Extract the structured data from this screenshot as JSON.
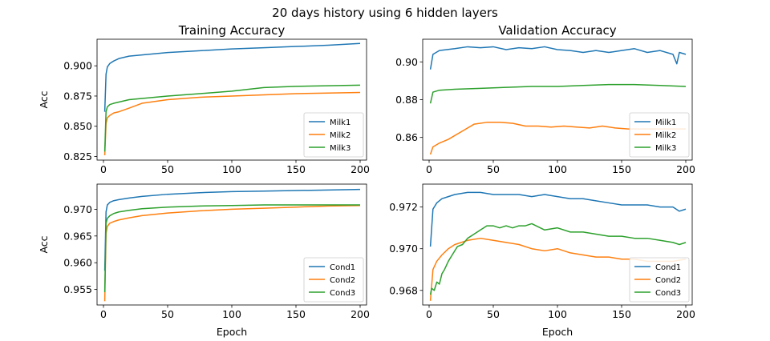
{
  "figure": {
    "suptitle": "20 days history using 6 hidden layers"
  },
  "chart_data": [
    {
      "type": "line",
      "title": "Training Accuracy",
      "xlabel": "",
      "ylabel": "Acc",
      "xlim": [
        -5,
        205
      ],
      "ylim": [
        0.822,
        0.922
      ],
      "xticks": [
        0,
        50,
        100,
        150,
        200
      ],
      "xtick_labels": [
        "0",
        "50",
        "100",
        "150",
        "200"
      ],
      "yticks": [
        0.825,
        0.85,
        0.875,
        0.9
      ],
      "ytick_labels": [
        "0.825",
        "0.850",
        "0.875",
        "0.900"
      ],
      "legend": "lower-right",
      "series": [
        {
          "name": "Milk1",
          "color": "#1f77b4",
          "x": [
            1,
            2,
            3,
            5,
            8,
            12,
            20,
            30,
            50,
            75,
            100,
            125,
            150,
            175,
            200
          ],
          "values": [
            0.862,
            0.893,
            0.899,
            0.902,
            0.904,
            0.906,
            0.908,
            0.909,
            0.911,
            0.9125,
            0.914,
            0.915,
            0.916,
            0.917,
            0.9185
          ]
        },
        {
          "name": "Milk2",
          "color": "#ff7f0e",
          "x": [
            1,
            2,
            3,
            5,
            8,
            12,
            20,
            30,
            50,
            75,
            100,
            125,
            150,
            175,
            200
          ],
          "values": [
            0.826,
            0.852,
            0.857,
            0.859,
            0.861,
            0.862,
            0.865,
            0.869,
            0.872,
            0.874,
            0.875,
            0.876,
            0.877,
            0.8775,
            0.878
          ]
        },
        {
          "name": "Milk3",
          "color": "#2ca02c",
          "x": [
            1,
            2,
            3,
            5,
            8,
            12,
            20,
            30,
            50,
            75,
            100,
            125,
            150,
            175,
            200
          ],
          "values": [
            0.829,
            0.862,
            0.866,
            0.868,
            0.869,
            0.87,
            0.872,
            0.873,
            0.875,
            0.877,
            0.879,
            0.882,
            0.883,
            0.8835,
            0.884
          ]
        }
      ]
    },
    {
      "type": "line",
      "title": "Validation Accuracy",
      "xlabel": "",
      "ylabel": "",
      "xlim": [
        -5,
        205
      ],
      "ylim": [
        0.848,
        0.912
      ],
      "xticks": [
        0,
        50,
        100,
        150,
        200
      ],
      "xtick_labels": [
        "0",
        "50",
        "100",
        "150",
        "200"
      ],
      "yticks": [
        0.86,
        0.88,
        0.9
      ],
      "ytick_labels": [
        "0.86",
        "0.88",
        "0.90"
      ],
      "legend": "lower-right",
      "series": [
        {
          "name": "Milk1",
          "color": "#1f77b4",
          "x": [
            1,
            3,
            8,
            20,
            30,
            40,
            50,
            60,
            70,
            80,
            90,
            100,
            110,
            120,
            130,
            140,
            150,
            160,
            170,
            180,
            190,
            193,
            195,
            200
          ],
          "values": [
            0.896,
            0.904,
            0.906,
            0.907,
            0.908,
            0.9075,
            0.908,
            0.9065,
            0.9075,
            0.907,
            0.908,
            0.9065,
            0.906,
            0.905,
            0.906,
            0.905,
            0.906,
            0.907,
            0.905,
            0.906,
            0.904,
            0.899,
            0.905,
            0.904
          ]
        },
        {
          "name": "Milk2",
          "color": "#ff7f0e",
          "x": [
            1,
            3,
            8,
            15,
            25,
            35,
            45,
            55,
            65,
            75,
            85,
            95,
            105,
            115,
            125,
            135,
            145,
            155,
            165,
            175,
            185,
            195,
            200
          ],
          "values": [
            0.851,
            0.855,
            0.857,
            0.859,
            0.863,
            0.867,
            0.868,
            0.868,
            0.8675,
            0.866,
            0.866,
            0.8655,
            0.866,
            0.8655,
            0.865,
            0.866,
            0.865,
            0.8645,
            0.8645,
            0.8645,
            0.8645,
            0.8645,
            0.8645
          ]
        },
        {
          "name": "Milk3",
          "color": "#2ca02c",
          "x": [
            1,
            3,
            8,
            20,
            40,
            60,
            80,
            100,
            120,
            140,
            160,
            180,
            200
          ],
          "values": [
            0.878,
            0.884,
            0.885,
            0.8855,
            0.886,
            0.8865,
            0.887,
            0.887,
            0.8875,
            0.888,
            0.888,
            0.8875,
            0.887
          ]
        }
      ]
    },
    {
      "type": "line",
      "title": "",
      "xlabel": "Epoch",
      "ylabel": "Acc",
      "xlim": [
        -5,
        205
      ],
      "ylim": [
        0.9521,
        0.9747
      ],
      "xticks": [
        0,
        50,
        100,
        150,
        200
      ],
      "xtick_labels": [
        "0",
        "50",
        "100",
        "150",
        "200"
      ],
      "yticks": [
        0.955,
        0.96,
        0.965,
        0.97
      ],
      "ytick_labels": [
        "0.955",
        "0.960",
        "0.965",
        "0.970"
      ],
      "legend": "lower-right",
      "series": [
        {
          "name": "Cond1",
          "color": "#1f77b4",
          "x": [
            1,
            2,
            3,
            5,
            8,
            12,
            20,
            30,
            50,
            75,
            100,
            125,
            150,
            175,
            200
          ],
          "values": [
            0.9585,
            0.9695,
            0.9708,
            0.9713,
            0.9716,
            0.9718,
            0.9721,
            0.9724,
            0.9728,
            0.9731,
            0.9733,
            0.9734,
            0.9735,
            0.9736,
            0.9737
          ]
        },
        {
          "name": "Cond2",
          "color": "#ff7f0e",
          "x": [
            1,
            2,
            3,
            5,
            8,
            12,
            20,
            30,
            50,
            75,
            100,
            125,
            150,
            175,
            200
          ],
          "values": [
            0.9528,
            0.9655,
            0.9668,
            0.9674,
            0.9677,
            0.968,
            0.9684,
            0.9688,
            0.9693,
            0.9697,
            0.97,
            0.9702,
            0.9704,
            0.9706,
            0.9707
          ]
        },
        {
          "name": "Cond3",
          "color": "#2ca02c",
          "x": [
            1,
            2,
            3,
            5,
            8,
            12,
            20,
            30,
            50,
            75,
            100,
            125,
            150,
            175,
            200
          ],
          "values": [
            0.9545,
            0.9674,
            0.9683,
            0.9688,
            0.9692,
            0.9695,
            0.9698,
            0.9701,
            0.9704,
            0.9706,
            0.9707,
            0.9708,
            0.9708,
            0.9708,
            0.9708
          ]
        }
      ]
    },
    {
      "type": "line",
      "title": "",
      "xlabel": "Epoch",
      "ylabel": "",
      "xlim": [
        -5,
        205
      ],
      "ylim": [
        0.9673,
        0.9731
      ],
      "xticks": [
        0,
        50,
        100,
        150,
        200
      ],
      "xtick_labels": [
        "0",
        "50",
        "100",
        "150",
        "200"
      ],
      "yticks": [
        0.968,
        0.97,
        0.972
      ],
      "ytick_labels": [
        "0.968",
        "0.970",
        "0.972"
      ],
      "legend": "lower-right",
      "series": [
        {
          "name": "Cond1",
          "color": "#1f77b4",
          "x": [
            1,
            3,
            6,
            10,
            15,
            20,
            30,
            40,
            50,
            60,
            70,
            80,
            90,
            100,
            110,
            120,
            130,
            140,
            150,
            160,
            170,
            180,
            190,
            195,
            200
          ],
          "values": [
            0.9701,
            0.9719,
            0.9722,
            0.9724,
            0.9725,
            0.9726,
            0.9727,
            0.9727,
            0.9726,
            0.9726,
            0.9726,
            0.9725,
            0.9726,
            0.9725,
            0.9724,
            0.9724,
            0.9723,
            0.9722,
            0.9721,
            0.9721,
            0.9721,
            0.972,
            0.972,
            0.9718,
            0.9719
          ]
        },
        {
          "name": "Cond2",
          "color": "#ff7f0e",
          "x": [
            1,
            3,
            6,
            10,
            15,
            20,
            25,
            30,
            40,
            50,
            60,
            70,
            80,
            90,
            100,
            110,
            120,
            130,
            140,
            150,
            160,
            170,
            180,
            190,
            200
          ],
          "values": [
            0.9675,
            0.969,
            0.9694,
            0.9697,
            0.97,
            0.9702,
            0.9703,
            0.9704,
            0.9705,
            0.9704,
            0.9703,
            0.9702,
            0.97,
            0.9699,
            0.97,
            0.9698,
            0.9697,
            0.9696,
            0.9696,
            0.9695,
            0.9695,
            0.9694,
            0.9694,
            0.9694,
            0.9695
          ]
        },
        {
          "name": "Cond3",
          "color": "#2ca02c",
          "x": [
            1,
            2,
            4,
            6,
            8,
            10,
            12,
            15,
            18,
            22,
            26,
            30,
            35,
            40,
            45,
            50,
            55,
            60,
            65,
            70,
            75,
            80,
            90,
            100,
            110,
            120,
            130,
            140,
            150,
            160,
            170,
            180,
            190,
            195,
            200
          ],
          "values": [
            0.9678,
            0.9681,
            0.968,
            0.9684,
            0.9683,
            0.9688,
            0.969,
            0.9694,
            0.9697,
            0.9701,
            0.9702,
            0.9705,
            0.9707,
            0.9709,
            0.9711,
            0.9711,
            0.971,
            0.9711,
            0.971,
            0.9711,
            0.9711,
            0.9712,
            0.9709,
            0.971,
            0.9708,
            0.9708,
            0.9707,
            0.9706,
            0.9706,
            0.9705,
            0.9705,
            0.9704,
            0.9703,
            0.9702,
            0.9703
          ]
        }
      ]
    }
  ]
}
